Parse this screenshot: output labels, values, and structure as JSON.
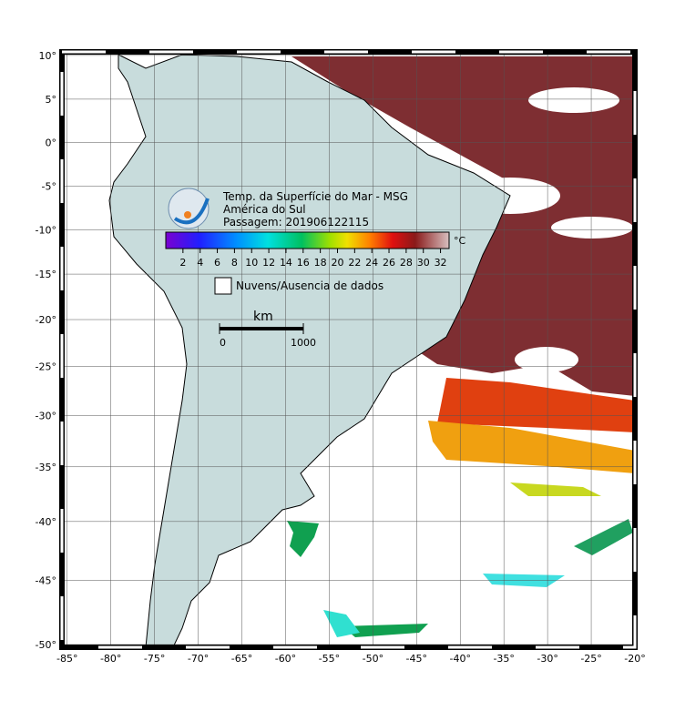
{
  "map": {
    "title": "Temp. da Superfície do Mar - MSG",
    "region": "América do Sul",
    "pass": "Passagem: 201906122115",
    "lonlim": [
      -85.6,
      -20
    ],
    "latlim": [
      -50.2,
      10.4
    ],
    "lon_ticks": [
      {
        "value": -85,
        "label": "-85°"
      },
      {
        "value": -80,
        "label": "-80°"
      },
      {
        "value": -75,
        "label": "-75°"
      },
      {
        "value": -70,
        "label": "-70°"
      },
      {
        "value": -65,
        "label": "-65°"
      },
      {
        "value": -60,
        "label": "-60°"
      },
      {
        "value": -55,
        "label": "-55°"
      },
      {
        "value": -50,
        "label": "-50°"
      },
      {
        "value": -45,
        "label": "-45°"
      },
      {
        "value": -40,
        "label": "-40°"
      },
      {
        "value": -35,
        "label": "-35°"
      },
      {
        "value": -30,
        "label": "-30°"
      },
      {
        "value": -25,
        "label": "-25°"
      },
      {
        "value": -20,
        "label": "-20°"
      }
    ],
    "lat_ticks": [
      {
        "value": 10,
        "label": "10°"
      },
      {
        "value": 5,
        "label": "5°"
      },
      {
        "value": 0,
        "label": "0°"
      },
      {
        "value": -5,
        "label": "-5°"
      },
      {
        "value": -10,
        "label": "-10°"
      },
      {
        "value": -15,
        "label": "-15°"
      },
      {
        "value": -20,
        "label": "-20°"
      },
      {
        "value": -25,
        "label": "-25°"
      },
      {
        "value": -30,
        "label": "-30°"
      },
      {
        "value": -35,
        "label": "-35°"
      },
      {
        "value": -40,
        "label": "-40°"
      },
      {
        "value": -45,
        "label": "-45°"
      },
      {
        "value": -50,
        "label": "-50°"
      }
    ],
    "colorbar": {
      "lim": [
        0,
        33
      ],
      "ticks": [
        2,
        4,
        6,
        8,
        10,
        12,
        14,
        16,
        18,
        20,
        22,
        24,
        26,
        28,
        30,
        32
      ],
      "unit": "°C"
    },
    "legend": "Nuvens/Ausencia de dados",
    "scale": {
      "unit": "km",
      "lim": [
        0,
        1000
      ],
      "ticks": [
        0,
        1000
      ]
    }
  }
}
